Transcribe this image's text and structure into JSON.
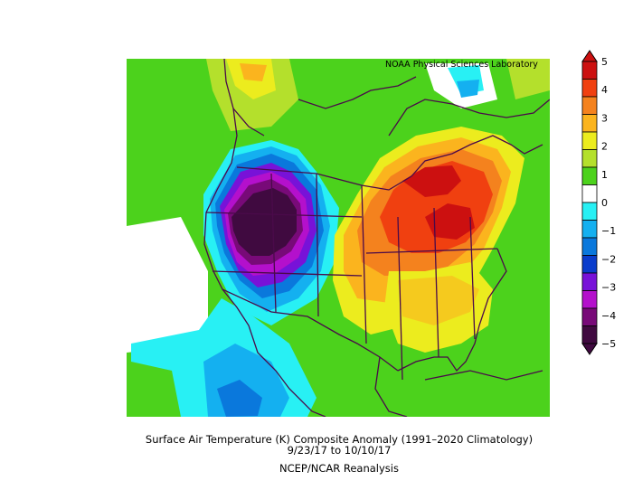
{
  "credit": "NOAA Physical Sciences Laboratory",
  "title": "Surface Air Temperature (K) Composite Anomaly (1991–2020 Climatology)",
  "dates": "9/23/17  to 10/10/17",
  "source": "NCEP/NCAR Reanalysis",
  "colorbar": {
    "labels": [
      "5",
      "4",
      "3",
      "2",
      "1",
      "0",
      "−1",
      "−2",
      "−3",
      "−4",
      "−5"
    ],
    "colors": [
      "#cc1010",
      "#f04010",
      "#f4821e",
      "#fbb41e",
      "#ecec1e",
      "#b4e02c",
      "#4cd21c",
      "#ffffff",
      "#28f0f4",
      "#14b0f0",
      "#0a78dc",
      "#0a3ccc",
      "#7812d8",
      "#b410cc",
      "#780a78",
      "#400a40"
    ]
  }
}
